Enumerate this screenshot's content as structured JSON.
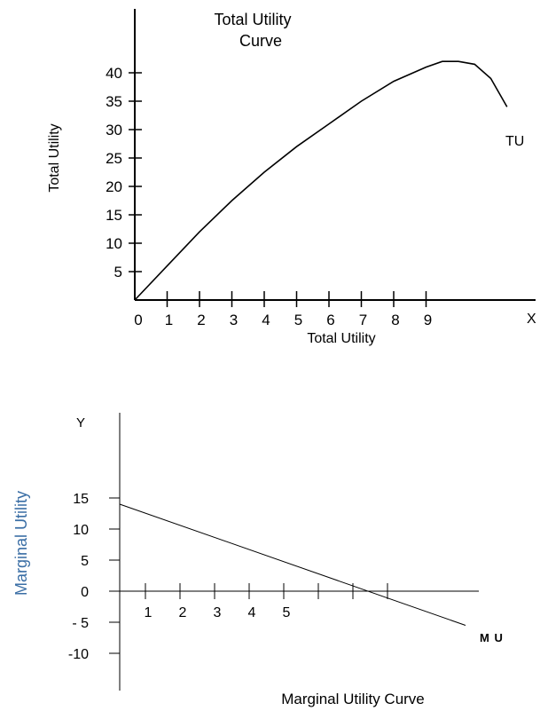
{
  "chart_data": [
    {
      "type": "line",
      "title": "Total Utility\nCurve",
      "xlabel": "Total Utility",
      "ylabel": "Total Utility",
      "x_axis_end_label": "X",
      "x_ticks": [
        "0",
        "1",
        "2",
        "3",
        "4",
        "5",
        "6",
        "7",
        "8",
        "9"
      ],
      "y_ticks": [
        "5",
        "10",
        "15",
        "20",
        "25",
        "30",
        "35",
        "40"
      ],
      "xlim": [
        0,
        12
      ],
      "ylim": [
        0,
        45
      ],
      "series": [
        {
          "name": "TU",
          "x": [
            0,
            1,
            2,
            3,
            4,
            5,
            6,
            7,
            8,
            9,
            9.5,
            10,
            10.5,
            11,
            11.5
          ],
          "y": [
            0,
            6,
            12,
            17.5,
            22.5,
            27,
            31,
            35,
            38.5,
            41,
            42,
            42,
            41.5,
            39,
            34
          ]
        }
      ],
      "grid": false,
      "colors": {
        "line": "#000000"
      }
    },
    {
      "type": "line",
      "title": "Marginal  Utility Curve",
      "xlabel": "",
      "ylabel": "Marginal Utility",
      "y_axis_top_label": "Y",
      "x_ticks": [
        "1",
        "2",
        "3",
        "4",
        "5"
      ],
      "y_ticks": [
        "15",
        "10",
        "5",
        "0",
        "- 5",
        "-10"
      ],
      "xlim": [
        0,
        10.5
      ],
      "ylim": [
        -12,
        19
      ],
      "series": [
        {
          "name": "M U",
          "x": [
            0,
            10
          ],
          "y": [
            14,
            -5.5
          ]
        }
      ],
      "grid": false,
      "colors": {
        "line": "#000000",
        "ylabel": "#3a6ea5"
      }
    }
  ]
}
